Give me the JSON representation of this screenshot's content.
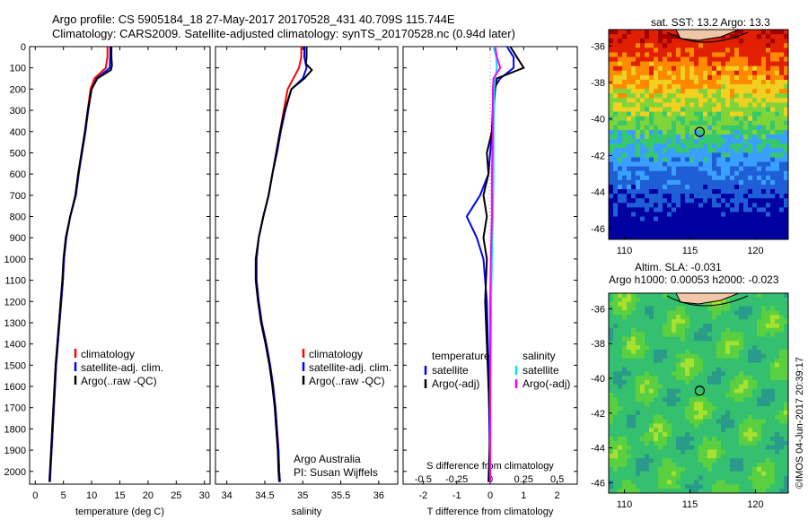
{
  "header": {
    "line1": "Argo profile: CS 5905184_18 27-May-2017 20170528_431 40.709S 115.744E",
    "line2": "Climatology: CARS2009. Satellite-adjusted climatology: synTS_20170528.nc (0.94d later)"
  },
  "colors": {
    "climatology": "#ff0000",
    "satellite": "#0000ff",
    "argo": "#000000",
    "sat_salinity": "#00e5ee",
    "argo_adj_salinity": "#ff00ff"
  },
  "chart_data": [
    {
      "type": "line",
      "xlabel": "temperature (deg C)",
      "ylabel": "",
      "xlim": [
        -1,
        31
      ],
      "ylim": [
        2060,
        0
      ],
      "xticks": [
        0,
        5,
        10,
        15,
        20,
        25,
        30
      ],
      "yticks": [
        0,
        100,
        200,
        300,
        400,
        500,
        600,
        700,
        800,
        900,
        1000,
        1100,
        1200,
        1300,
        1400,
        1500,
        1600,
        1700,
        1800,
        1900,
        2000
      ],
      "legend": [
        "climatology",
        "satellite-adj. clim.",
        "Argo(..raw -QC)"
      ],
      "series": [
        {
          "name": "climatology",
          "color": "#ff0000",
          "points": [
            [
              12.8,
              0
            ],
            [
              12.8,
              50
            ],
            [
              12.5,
              100
            ],
            [
              10.5,
              150
            ],
            [
              9.8,
              200
            ],
            [
              9.3,
              300
            ],
            [
              8.8,
              400
            ],
            [
              8.2,
              500
            ],
            [
              7.7,
              600
            ],
            [
              7.2,
              700
            ],
            [
              6.2,
              800
            ],
            [
              5.5,
              900
            ],
            [
              5.1,
              1000
            ],
            [
              4.9,
              1100
            ],
            [
              4.6,
              1200
            ],
            [
              4.3,
              1300
            ],
            [
              4.0,
              1400
            ],
            [
              3.7,
              1500
            ],
            [
              3.5,
              1600
            ],
            [
              3.3,
              1700
            ],
            [
              3.1,
              1800
            ],
            [
              2.9,
              1900
            ],
            [
              2.7,
              2000
            ],
            [
              2.6,
              2050
            ]
          ]
        },
        {
          "name": "satellite-adj. clim.",
          "color": "#0000ff",
          "points": [
            [
              13.3,
              0
            ],
            [
              13.3,
              50
            ],
            [
              13.2,
              100
            ],
            [
              10.9,
              150
            ],
            [
              10.0,
              200
            ],
            [
              9.4,
              300
            ],
            [
              8.9,
              400
            ],
            [
              8.3,
              500
            ],
            [
              7.7,
              600
            ],
            [
              7.2,
              700
            ],
            [
              6.2,
              800
            ],
            [
              5.5,
              900
            ],
            [
              5.1,
              1000
            ],
            [
              4.9,
              1100
            ],
            [
              4.6,
              1200
            ],
            [
              4.3,
              1300
            ],
            [
              4.0,
              1400
            ],
            [
              3.7,
              1500
            ],
            [
              3.5,
              1600
            ],
            [
              3.3,
              1700
            ],
            [
              3.1,
              1800
            ],
            [
              2.9,
              1900
            ],
            [
              2.7,
              2000
            ],
            [
              2.6,
              2050
            ]
          ]
        },
        {
          "name": "Argo(..raw -QC)",
          "color": "#000000",
          "points": [
            [
              13.5,
              0
            ],
            [
              13.5,
              50
            ],
            [
              13.6,
              90
            ],
            [
              13.4,
              110
            ],
            [
              11.0,
              150
            ],
            [
              10.0,
              200
            ],
            [
              9.3,
              300
            ],
            [
              8.8,
              400
            ],
            [
              8.2,
              500
            ],
            [
              7.6,
              600
            ],
            [
              7.1,
              700
            ],
            [
              6.2,
              800
            ],
            [
              5.4,
              900
            ],
            [
              5.0,
              1000
            ],
            [
              4.8,
              1100
            ],
            [
              4.5,
              1200
            ],
            [
              4.2,
              1300
            ],
            [
              3.9,
              1400
            ],
            [
              3.6,
              1500
            ],
            [
              3.4,
              1600
            ],
            [
              3.2,
              1700
            ],
            [
              3.0,
              1800
            ],
            [
              2.8,
              1900
            ],
            [
              2.6,
              2000
            ],
            [
              2.5,
              2050
            ]
          ]
        }
      ]
    },
    {
      "type": "line",
      "xlabel": "salinity",
      "xlim": [
        33.85,
        36.25
      ],
      "ylim": [
        2060,
        0
      ],
      "xticks": [
        34,
        34.5,
        35,
        35.5,
        36
      ],
      "legend": [
        "climatology",
        "satellite-adj. clim.",
        "Argo(..raw -QC)"
      ],
      "annotation": [
        "Argo Australia",
        "PI: Susan Wijffels"
      ],
      "series": [
        {
          "name": "climatology",
          "color": "#ff0000",
          "points": [
            [
              34.98,
              0
            ],
            [
              34.98,
              50
            ],
            [
              34.95,
              100
            ],
            [
              34.8,
              200
            ],
            [
              34.75,
              300
            ],
            [
              34.7,
              400
            ],
            [
              34.65,
              500
            ],
            [
              34.6,
              600
            ],
            [
              34.55,
              700
            ],
            [
              34.48,
              800
            ],
            [
              34.42,
              900
            ],
            [
              34.39,
              1000
            ],
            [
              34.39,
              1100
            ],
            [
              34.42,
              1200
            ],
            [
              34.46,
              1300
            ],
            [
              34.52,
              1400
            ],
            [
              34.57,
              1500
            ],
            [
              34.61,
              1600
            ],
            [
              34.64,
              1700
            ],
            [
              34.66,
              1800
            ],
            [
              34.68,
              1900
            ],
            [
              34.69,
              2000
            ],
            [
              34.7,
              2050
            ]
          ]
        },
        {
          "name": "satellite-adj. clim.",
          "color": "#0000ff",
          "points": [
            [
              35.02,
              0
            ],
            [
              35.02,
              50
            ],
            [
              35.05,
              100
            ],
            [
              35.0,
              150
            ],
            [
              34.85,
              200
            ],
            [
              34.77,
              300
            ],
            [
              34.71,
              400
            ],
            [
              34.66,
              500
            ],
            [
              34.6,
              600
            ],
            [
              34.55,
              700
            ],
            [
              34.48,
              800
            ],
            [
              34.42,
              900
            ],
            [
              34.39,
              1000
            ],
            [
              34.39,
              1100
            ],
            [
              34.42,
              1200
            ],
            [
              34.46,
              1300
            ],
            [
              34.52,
              1400
            ],
            [
              34.57,
              1500
            ],
            [
              34.61,
              1600
            ],
            [
              34.64,
              1700
            ],
            [
              34.66,
              1800
            ],
            [
              34.68,
              1900
            ],
            [
              34.69,
              2000
            ],
            [
              34.7,
              2050
            ]
          ]
        },
        {
          "name": "Argo(..raw -QC)",
          "color": "#000000",
          "points": [
            [
              35.05,
              0
            ],
            [
              35.05,
              50
            ],
            [
              35.04,
              80
            ],
            [
              35.12,
              110
            ],
            [
              35.02,
              150
            ],
            [
              34.85,
              200
            ],
            [
              34.76,
              300
            ],
            [
              34.7,
              400
            ],
            [
              34.65,
              500
            ],
            [
              34.6,
              600
            ],
            [
              34.55,
              700
            ],
            [
              34.48,
              800
            ],
            [
              34.42,
              900
            ],
            [
              34.38,
              1000
            ],
            [
              34.38,
              1100
            ],
            [
              34.41,
              1200
            ],
            [
              34.45,
              1300
            ],
            [
              34.51,
              1400
            ],
            [
              34.56,
              1500
            ],
            [
              34.6,
              1600
            ],
            [
              34.63,
              1700
            ],
            [
              34.65,
              1800
            ],
            [
              34.67,
              1900
            ],
            [
              34.68,
              2000
            ],
            [
              34.69,
              2050
            ]
          ]
        }
      ]
    },
    {
      "type": "line",
      "xlabel": "T difference from climatology",
      "xlim": [
        -2.6,
        2.6
      ],
      "ylim": [
        2060,
        0
      ],
      "xticks": [
        -2,
        -1,
        0,
        1,
        2
      ],
      "top_axis_label": "S difference from climatology",
      "top_ticks": [
        -0.5,
        -0.25,
        0,
        0.25,
        0.5
      ],
      "top_tick_labels": [
        "-0.5",
        "-0.25",
        "0",
        "0.25",
        "0.5"
      ],
      "legend_temperature_title": "temperature",
      "legend_salinity_title": "salinity",
      "legend_temperature": [
        "satellite",
        "Argo(-adj)"
      ],
      "legend_salinity": [
        "satellite",
        "Argo(-adj)"
      ],
      "series": [
        {
          "name": "temperature satellite",
          "color": "#0000ff",
          "points": [
            [
              0.5,
              0
            ],
            [
              0.7,
              50
            ],
            [
              0.7,
              100
            ],
            [
              0.3,
              150
            ],
            [
              0.1,
              200
            ],
            [
              0.05,
              400
            ],
            [
              -0.05,
              600
            ],
            [
              -0.3,
              700
            ],
            [
              -0.7,
              800
            ],
            [
              -0.4,
              900
            ],
            [
              -0.2,
              1000
            ],
            [
              -0.1,
              1200
            ],
            [
              -0.05,
              1500
            ],
            [
              0,
              2050
            ]
          ]
        },
        {
          "name": "temperature Argo(-adj)",
          "color": "#000000",
          "points": [
            [
              0.6,
              0
            ],
            [
              0.8,
              50
            ],
            [
              1.0,
              100
            ],
            [
              0.2,
              150
            ],
            [
              0.15,
              200
            ],
            [
              0.1,
              300
            ],
            [
              0.05,
              400
            ],
            [
              -0.1,
              500
            ],
            [
              -0.05,
              600
            ],
            [
              -0.2,
              700
            ],
            [
              -0.1,
              800
            ],
            [
              -0.2,
              900
            ],
            [
              -0.1,
              1000
            ],
            [
              -0.15,
              1200
            ],
            [
              -0.1,
              1400
            ],
            [
              -0.05,
              1600
            ],
            [
              0,
              1800
            ],
            [
              -0.05,
              2050
            ]
          ]
        },
        {
          "name": "salinity satellite",
          "color": "#00e5ee",
          "points": [
            [
              0.1,
              0
            ],
            [
              0.18,
              50
            ],
            [
              0.2,
              100
            ],
            [
              0.15,
              150
            ],
            [
              0.12,
              200
            ],
            [
              0.1,
              400
            ],
            [
              0.1,
              600
            ],
            [
              0.08,
              800
            ],
            [
              0.05,
              1000
            ],
            [
              0.03,
              1200
            ],
            [
              0.01,
              1500
            ],
            [
              0,
              2050
            ]
          ]
        },
        {
          "name": "salinity Argo(-adj)",
          "color": "#ff00ff",
          "points": [
            [
              0.15,
              0
            ],
            [
              0.2,
              50
            ],
            [
              0.3,
              100
            ],
            [
              0.1,
              150
            ],
            [
              0.08,
              200
            ],
            [
              0.08,
              400
            ],
            [
              0.05,
              600
            ],
            [
              0.05,
              800
            ],
            [
              0.02,
              1000
            ],
            [
              0.0,
              1200
            ],
            [
              0,
              2050
            ]
          ]
        }
      ]
    },
    {
      "type": "heatmap",
      "title": "sat. SST: 13.2 Argo: 13.3",
      "xlim": [
        108.8,
        122.5
      ],
      "ylim": [
        -46.6,
        -35.1
      ],
      "xticks": [
        110,
        115,
        120
      ],
      "yticks": [
        -36,
        -38,
        -40,
        -42,
        -44,
        -46
      ],
      "marker": [
        115.744,
        -40.709
      ]
    },
    {
      "type": "heatmap",
      "title_line1": "Altim. SLA: -0.031",
      "title_line2": "Argo h1000: 0.00053 h2000: -0.023",
      "xlim": [
        108.8,
        122.5
      ],
      "ylim": [
        -46.6,
        -35.1
      ],
      "xticks": [
        110,
        115,
        120
      ],
      "yticks": [
        -36,
        -38,
        -40,
        -42,
        -44,
        -46
      ],
      "marker": [
        115.744,
        -40.709
      ]
    }
  ],
  "footer_vertical": "©IMOS 04-Jun-2017 20:39:17"
}
